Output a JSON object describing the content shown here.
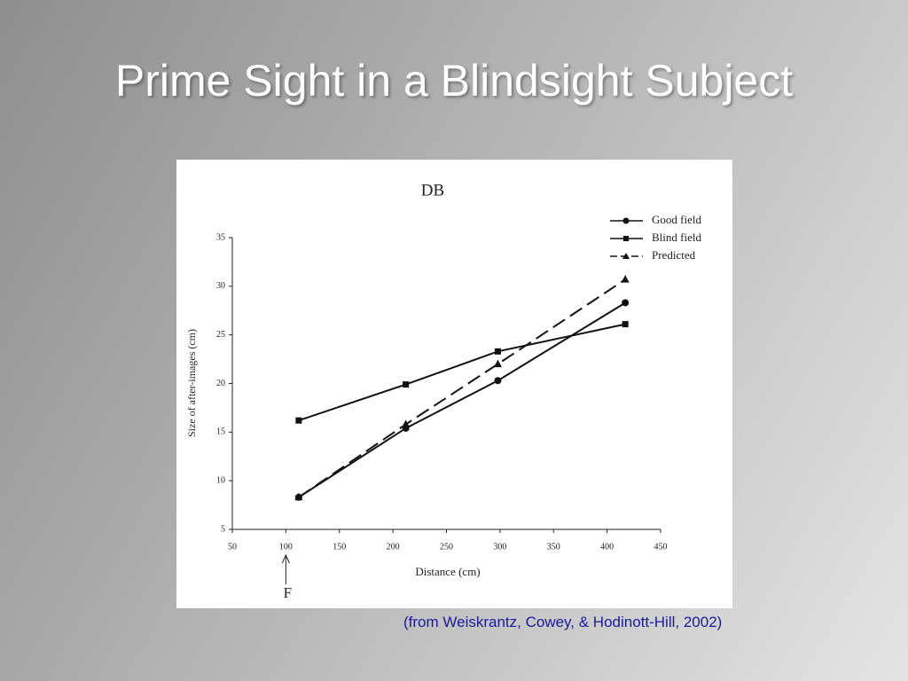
{
  "title": "Prime Sight in a Blindsight Subject",
  "citation": "(from Weiskrantz, Cowey, & Hodinott-Hill, 2002)",
  "chart_data": {
    "type": "line",
    "title": "DB",
    "x_label": "Distance (cm)",
    "y_label": "Size of after-images (cm)",
    "xlim": [
      50,
      450
    ],
    "xticks": [
      50,
      100,
      150,
      200,
      250,
      300,
      350,
      400,
      450
    ],
    "ylim": [
      5,
      35
    ],
    "yticks": [
      5,
      10,
      15,
      20,
      25,
      30,
      35
    ],
    "legend": "top-right",
    "series": [
      {
        "name": "Good field",
        "color": "#111111",
        "marker": "circle",
        "dash": false,
        "x": [
          112,
          212,
          298,
          417
        ],
        "values": [
          8.3,
          15.4,
          20.3,
          28.3
        ]
      },
      {
        "name": "Blind field",
        "color": "#111111",
        "marker": "square",
        "dash": false,
        "x": [
          112,
          212,
          298,
          417
        ],
        "values": [
          16.2,
          19.9,
          23.3,
          26.1
        ]
      },
      {
        "name": "Predicted",
        "color": "#111111",
        "marker": "triangle",
        "dash": true,
        "x": [
          112,
          212,
          298,
          417
        ],
        "values": [
          8.3,
          15.8,
          22.0,
          30.7
        ]
      }
    ],
    "annotations": [
      {
        "text": "F",
        "x": 100
      }
    ]
  }
}
